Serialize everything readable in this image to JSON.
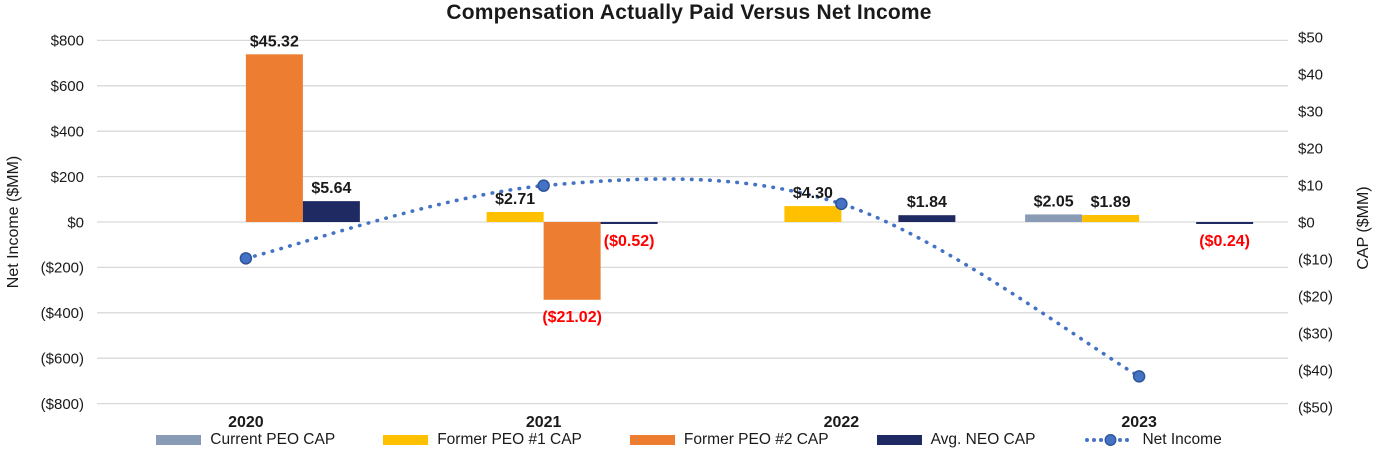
{
  "chart_data": {
    "type": "combo-bar-line",
    "title": "Compensation Actually Paid Versus Net Income",
    "categories": [
      "2020",
      "2021",
      "2022",
      "2023"
    ],
    "left_axis": {
      "label": "Net Income ($MM)",
      "tick_labels": [
        "$800",
        "$600",
        "$400",
        "$200",
        "$0",
        "($200)",
        "($400)",
        "($600)",
        "($800)"
      ],
      "tick_values": [
        800,
        600,
        400,
        200,
        0,
        -200,
        -400,
        -600,
        -800
      ],
      "range": [
        -800,
        800
      ]
    },
    "right_axis": {
      "label": "CAP ($MM)",
      "tick_labels": [
        "$50",
        "$40",
        "$30",
        "$20",
        "$10",
        "$0",
        "($10)",
        "($20)",
        "($30)",
        "($40)",
        "($50)"
      ],
      "tick_values": [
        50,
        40,
        30,
        20,
        10,
        0,
        -10,
        -20,
        -30,
        -40,
        -50
      ],
      "range": [
        -50,
        50
      ]
    },
    "grid_color": "#d9d9d9",
    "value_label_colors": {
      "positive": "#1a1a1a",
      "negative": "#ff0000"
    },
    "series": [
      {
        "name": "Current PEO CAP",
        "type": "bar",
        "axis": "right",
        "slot": 0,
        "color": "#8a9bb5",
        "values": [
          null,
          null,
          null,
          2.05
        ],
        "labels": [
          null,
          null,
          null,
          "$2.05"
        ]
      },
      {
        "name": "Former PEO #1 CAP",
        "type": "bar",
        "axis": "right",
        "slot": 1,
        "color": "#ffc000",
        "values": [
          null,
          2.71,
          4.3,
          1.89
        ],
        "labels": [
          null,
          "$2.71",
          "$4.30",
          "$1.89"
        ]
      },
      {
        "name": "Former PEO #2 CAP",
        "type": "bar",
        "axis": "right",
        "slot": 2,
        "color": "#ed7d31",
        "values": [
          45.32,
          -21.02,
          null,
          null
        ],
        "labels": [
          "$45.32",
          "($21.02)",
          null,
          null
        ]
      },
      {
        "name": "Avg. NEO CAP",
        "type": "bar",
        "axis": "right",
        "slot": 3,
        "color": "#1f2a63",
        "values": [
          5.64,
          -0.52,
          1.84,
          -0.24
        ],
        "labels": [
          "$5.64",
          "($0.52)",
          "$1.84",
          "($0.24)"
        ]
      },
      {
        "name": "Net Income",
        "type": "line",
        "axis": "left",
        "color": "#4472c4",
        "marker_edge": "#2e5597",
        "style": "round-dot",
        "values": [
          -160,
          160,
          80,
          -680
        ]
      }
    ]
  }
}
